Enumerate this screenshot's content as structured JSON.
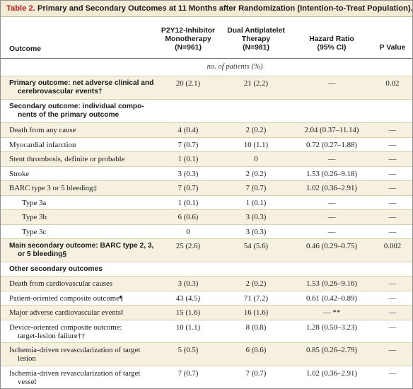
{
  "title": {
    "number": "Table 2.",
    "text": "Primary and Secondary Outcomes at 11 Months after Randomization (Intention-to-Treat Population).*"
  },
  "header": {
    "outcome": "Outcome",
    "col_a": [
      "P2Y12-Inhibitor",
      "Monotherapy",
      "(N=961)"
    ],
    "col_b": [
      "Dual Antiplatelet",
      "Therapy",
      "(N=981)"
    ],
    "col_c": [
      "Hazard Ratio",
      "(95% CI)"
    ],
    "col_d": [
      "P Value"
    ]
  },
  "units": "no. of patients (%)",
  "rows": [
    {
      "lines": [
        "Primary outcome: net adverse clinical and",
        "cerebrovascular events†"
      ],
      "a": "20 (2.1)",
      "b": "21 (2.2)",
      "c": "—",
      "d": "0.02",
      "bold": true,
      "indent": false
    },
    {
      "lines": [
        "Secondary outcome: individual compo-",
        "nents of the primary outcome"
      ],
      "a": "",
      "b": "",
      "c": "",
      "d": "",
      "bold": true,
      "indent": false
    },
    {
      "lines": [
        "Death from any cause"
      ],
      "a": "4 (0.4)",
      "b": "2 (0.2)",
      "c": "2.04 (0.37–11.14)",
      "d": "—",
      "bold": false,
      "indent": false
    },
    {
      "lines": [
        "Myocardial infarction"
      ],
      "a": "7 (0.7)",
      "b": "10 (1.1)",
      "c": "0.72 (0.27–1.88)",
      "d": "—",
      "bold": false,
      "indent": false
    },
    {
      "lines": [
        "Stent thrombosis, definite or probable"
      ],
      "a": "1 (0.1)",
      "b": "0",
      "c": "—",
      "d": "—",
      "bold": false,
      "indent": false
    },
    {
      "lines": [
        "Stroke"
      ],
      "a": "3 (0.3)",
      "b": "2 (0.2)",
      "c": "1.53 (0.26–9.18)",
      "d": "—",
      "bold": false,
      "indent": false
    },
    {
      "lines": [
        "BARC type 3 or 5 bleeding‡"
      ],
      "a": "7 (0.7)",
      "b": "7 (0.7)",
      "c": "1.02 (0.36–2.91)",
      "d": "—",
      "bold": false,
      "indent": false
    },
    {
      "lines": [
        "Type 3a"
      ],
      "a": "1 (0.1)",
      "b": "1 (0.1)",
      "c": "—",
      "d": "—",
      "bold": false,
      "indent": true
    },
    {
      "lines": [
        "Type 3b"
      ],
      "a": "6 (0.6)",
      "b": "3 (0.3)",
      "c": "—",
      "d": "—",
      "bold": false,
      "indent": true
    },
    {
      "lines": [
        "Type 3c"
      ],
      "a": "0",
      "b": "3 (0.3)",
      "c": "—",
      "d": "—",
      "bold": false,
      "indent": true
    },
    {
      "lines": [
        "Main secondary outcome: BARC type 2, 3,",
        "or 5 bleeding§"
      ],
      "a": "25 (2.6)",
      "b": "54 (5.6)",
      "c": "0.46 (0.29–0.75)",
      "d": "0.002",
      "bold": true,
      "indent": false
    },
    {
      "lines": [
        "Other secondary outcomes"
      ],
      "a": "",
      "b": "",
      "c": "",
      "d": "",
      "bold": true,
      "indent": false
    },
    {
      "lines": [
        "Death from cardiovascular causes"
      ],
      "a": "3 (0.3)",
      "b": "2 (0.2)",
      "c": "1.53 (0.26–9.16)",
      "d": "—",
      "bold": false,
      "indent": false
    },
    {
      "lines": [
        "Patient-oriented composite outcome¶"
      ],
      "a": "43 (4.5)",
      "b": "71 (7.2)",
      "c": "0.61 (0.42–0.89)",
      "d": "—",
      "bold": false,
      "indent": false
    },
    {
      "lines": [
        "Major adverse cardiovascular events‖"
      ],
      "a": "15 (1.6)",
      "b": "16 (1.6)",
      "c": "— **",
      "d": "—",
      "bold": false,
      "indent": false
    },
    {
      "lines": [
        "Device-oriented composite outcome:",
        "target-lesion failure††"
      ],
      "a": "10 (1.1)",
      "b": "8 (0.8)",
      "c": "1.28 (0.50–3.23)",
      "d": "—",
      "bold": false,
      "indent": false
    },
    {
      "lines": [
        "Ischemia-driven revascularization of target",
        "lesion"
      ],
      "a": "5 (0.5)",
      "b": "6 (0.6)",
      "c": "0.85 (0.26–2.79)",
      "d": "—",
      "bold": false,
      "indent": false
    },
    {
      "lines": [
        "Ischemia-driven revascularization of target",
        "vessel"
      ],
      "a": "7 (0.7)",
      "b": "7 (0.7)",
      "c": "1.02 (0.36–2.91)",
      "d": "—",
      "bold": false,
      "indent": false
    }
  ]
}
